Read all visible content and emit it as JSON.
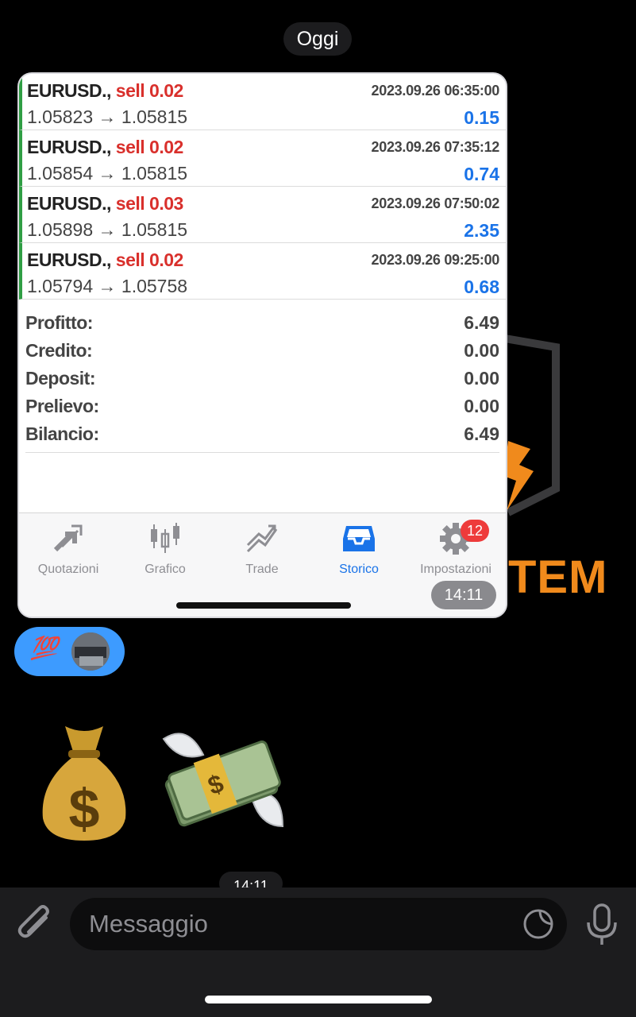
{
  "chat": {
    "date_label": "Oggi",
    "background_text": "TEM",
    "photo_time": "14:11",
    "sticker_time": "14:11",
    "reaction_emoji": "💯",
    "composer_placeholder": "Messaggio"
  },
  "trades": [
    {
      "symbol": "EURUSD.,",
      "side": "sell 0.02",
      "time": "2023.09.26 06:35:00",
      "prices": "1.05823 → 1.05815",
      "profit": "0.15"
    },
    {
      "symbol": "EURUSD.,",
      "side": "sell 0.02",
      "time": "2023.09.26 07:35:12",
      "prices": "1.05854 → 1.05815",
      "profit": "0.74"
    },
    {
      "symbol": "EURUSD.,",
      "side": "sell 0.03",
      "time": "2023.09.26 07:50:02",
      "prices": "1.05898 → 1.05815",
      "profit": "2.35"
    },
    {
      "symbol": "EURUSD.,",
      "side": "sell 0.02",
      "time": "2023.09.26 09:25:00",
      "prices": "1.05794 → 1.05758",
      "profit": "0.68"
    }
  ],
  "summary": [
    {
      "label": "Profitto:",
      "value": "6.49"
    },
    {
      "label": "Credito:",
      "value": "0.00"
    },
    {
      "label": "Deposit:",
      "value": "0.00"
    },
    {
      "label": "Prelievo:",
      "value": "0.00"
    },
    {
      "label": "Bilancio:",
      "value": "6.49"
    }
  ],
  "tabs": [
    {
      "label": "Quotazioni",
      "icon": "quotes-arrows-icon"
    },
    {
      "label": "Grafico",
      "icon": "candlestick-icon"
    },
    {
      "label": "Trade",
      "icon": "trade-chart-icon"
    },
    {
      "label": "Storico",
      "icon": "inbox-tray-icon",
      "active": true
    },
    {
      "label": "Impostazioni",
      "icon": "gear-icon",
      "badge": "12"
    }
  ],
  "colors": {
    "sell": "#d9302c",
    "profit": "#1a73e8",
    "active_tab": "#1a73e8",
    "badge": "#ee3b3b",
    "reaction_bg": "#3d9bff",
    "brand_orange": "#f08a1c"
  }
}
